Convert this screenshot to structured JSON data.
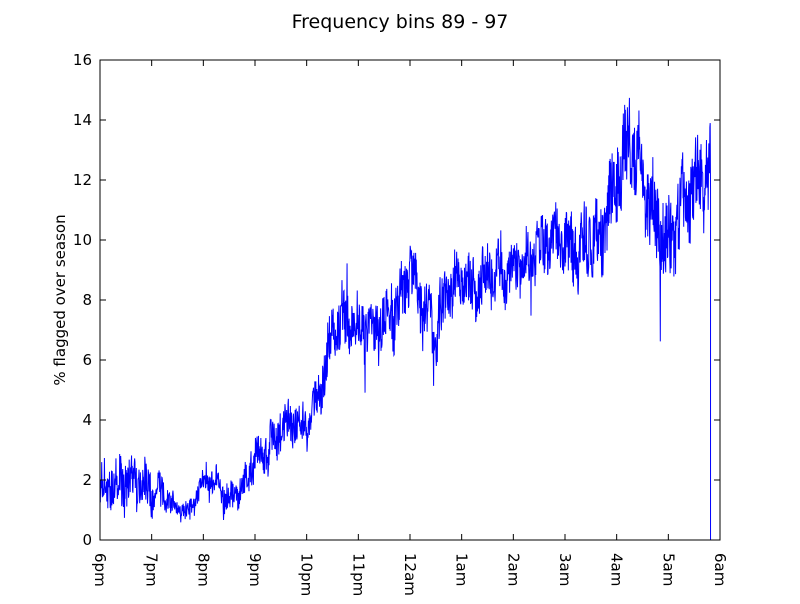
{
  "chart_data": {
    "type": "line",
    "title": "Frequency bins 89 - 97",
    "xlabel": "",
    "ylabel": "% flagged over season",
    "x_hours_ticks": [
      "6pm",
      "7pm",
      "8pm",
      "9pm",
      "10pm",
      "11pm",
      "12am",
      "1am",
      "2am",
      "3am",
      "4am",
      "5am",
      "6am"
    ],
    "ylim": [
      0,
      16
    ],
    "yticks": [
      0,
      2,
      4,
      6,
      8,
      10,
      12,
      14,
      16
    ],
    "grid": false,
    "legend": "none",
    "series": [
      {
        "color": "#0000ff",
        "trend": [
          [
            "6pm",
            1.6
          ],
          [
            "6:15pm",
            1.9
          ],
          [
            "6:30pm",
            2.0
          ],
          [
            "6:45pm",
            1.9
          ],
          [
            "7pm",
            1.7
          ],
          [
            "7:15pm",
            1.5
          ],
          [
            "7:30pm",
            1.0
          ],
          [
            "7:45pm",
            1.0
          ],
          [
            "8pm",
            2.0
          ],
          [
            "8:15pm",
            1.9
          ],
          [
            "8:30pm",
            1.3
          ],
          [
            "8:45pm",
            1.7
          ],
          [
            "9pm",
            2.8
          ],
          [
            "9:15pm",
            3.0
          ],
          [
            "9:30pm",
            3.7
          ],
          [
            "9:45pm",
            4.0
          ],
          [
            "10pm",
            3.8
          ],
          [
            "10:15pm",
            4.8
          ],
          [
            "10:30pm",
            7.0
          ],
          [
            "10:45pm",
            7.3
          ],
          [
            "11pm",
            7.1
          ],
          [
            "11:15pm",
            7.0
          ],
          [
            "11:30pm",
            7.2
          ],
          [
            "11:45pm",
            7.6
          ],
          [
            "12am",
            9.0
          ],
          [
            "12:15am",
            7.6
          ],
          [
            "12:30am",
            7.0
          ],
          [
            "12:45am",
            8.4
          ],
          [
            "1am",
            8.8
          ],
          [
            "1:15am",
            8.2
          ],
          [
            "1:30am",
            9.0
          ],
          [
            "1:45am",
            8.8
          ],
          [
            "2am",
            9.0
          ],
          [
            "2:15am",
            9.3
          ],
          [
            "2:30am",
            9.8
          ],
          [
            "2:45am",
            10.0
          ],
          [
            "3am",
            9.9
          ],
          [
            "3:15am",
            9.5
          ],
          [
            "3:30am",
            10.2
          ],
          [
            "3:45am",
            10.3
          ],
          [
            "4am",
            12.3
          ],
          [
            "4:15am",
            13.3
          ],
          [
            "4:30am",
            12.0
          ],
          [
            "4:45am",
            10.5
          ],
          [
            "5am",
            9.8
          ],
          [
            "5:15am",
            11.2
          ],
          [
            "5:30am",
            11.7
          ],
          [
            "5:45am",
            12.2
          ]
        ],
        "noise_amplitude": [
          [
            "6pm",
            1.0
          ],
          [
            "7pm",
            0.9
          ],
          [
            "7:30pm",
            0.3
          ],
          [
            "8pm",
            0.6
          ],
          [
            "8:45pm",
            0.6
          ],
          [
            "9pm",
            0.8
          ],
          [
            "10pm",
            0.9
          ],
          [
            "10:30pm",
            1.0
          ],
          [
            "12am",
            1.2
          ],
          [
            "1am",
            1.2
          ],
          [
            "2am",
            1.0
          ],
          [
            "3am",
            1.2
          ],
          [
            "4am",
            1.6
          ],
          [
            "4:30am",
            1.7
          ],
          [
            "5am",
            1.6
          ],
          [
            "5:50am",
            1.6
          ]
        ],
        "end": [
          "5:49am",
          0.0
        ]
      }
    ]
  }
}
